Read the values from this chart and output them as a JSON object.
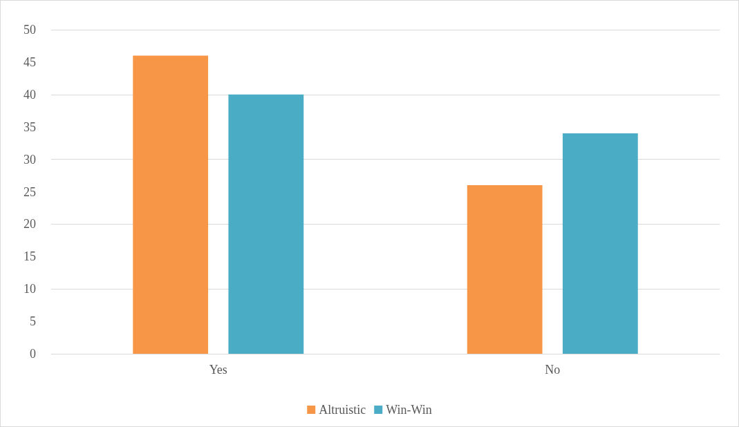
{
  "chart_data": {
    "type": "bar",
    "categories": [
      "Yes",
      "No"
    ],
    "series": [
      {
        "name": "Altruistic",
        "color": "#f79646",
        "values": [
          46,
          26
        ]
      },
      {
        "name": "Win-Win",
        "color": "#4bacc6",
        "values": [
          40,
          34
        ]
      }
    ],
    "ylim": [
      0,
      50
    ],
    "yticks": [
      0,
      5,
      10,
      15,
      20,
      25,
      30,
      35,
      40,
      45,
      50
    ],
    "grid": "y",
    "legend": "bottom"
  }
}
